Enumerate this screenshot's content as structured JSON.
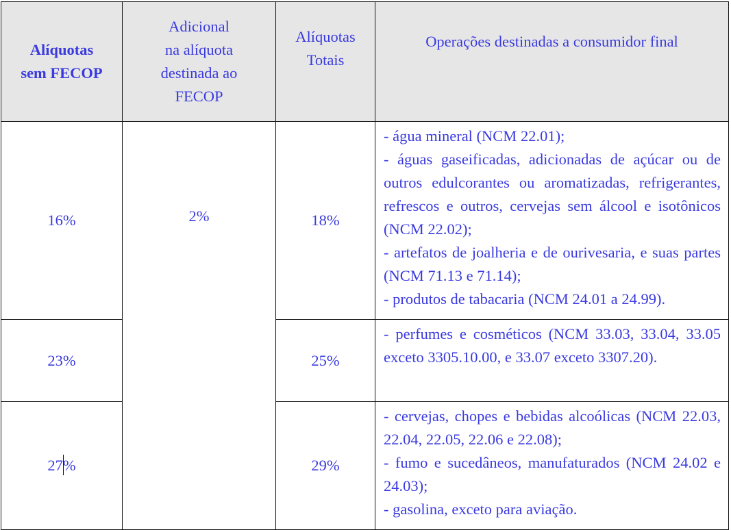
{
  "headers": {
    "col1": [
      "Alíquotas",
      "sem FECOP"
    ],
    "col2": [
      "Adicional",
      "na alíquota",
      "destinada ao",
      "FECOP"
    ],
    "col3": [
      "Alíquotas",
      "Totais"
    ],
    "col4": "Operações destinadas a consumidor final"
  },
  "fecop_rate": "2%",
  "rows": [
    {
      "rate_without": "16%",
      "total_rate": "18%",
      "operations": [
        "- água mineral (NCM 22.01);",
        "- águas gaseificadas, adicionadas de açúcar ou de outros edulcorantes ou aromatizadas, refrigerantes, refrescos e outros, cervejas sem álcool e isotônicos (NCM 22.02);",
        "- artefatos de joalheria e de ourivesaria, e suas partes (NCM 71.13 e 71.14);",
        "- produtos de tabacaria (NCM 24.01 a 24.99)."
      ]
    },
    {
      "rate_without": "23%",
      "total_rate": "25%",
      "operations": [
        "- perfumes e cosméticos (NCM 33.03, 33.04, 33.05 exceto 3305.10.00, e 33.07 exceto 3307.20)."
      ]
    },
    {
      "rate_without": "27%",
      "rate_without_parts": [
        "27",
        "%"
      ],
      "total_rate": "29%",
      "operations": [
        "- cervejas, chopes e bebidas alcoólicas (NCM 22.03, 22.04, 22.05, 22.06 e 22.08);",
        "- fumo e sucedâneos, manufaturados (NCM 24.02 e 24.03);",
        "- gasolina, exceto para aviação."
      ]
    }
  ],
  "colors": {
    "text": "#3a3ae0",
    "header_bg": "#e6e6e6",
    "border": "#111111"
  }
}
